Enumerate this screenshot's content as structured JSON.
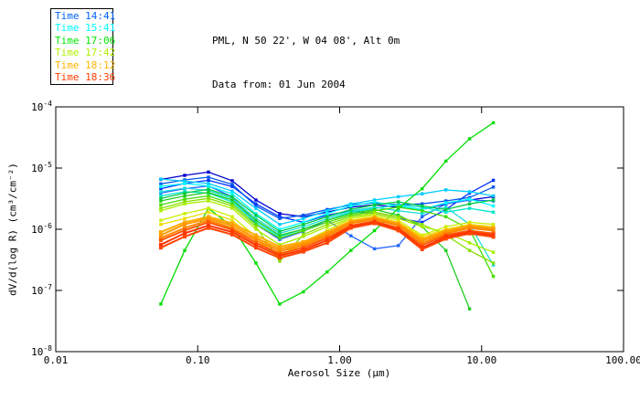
{
  "page": {
    "background": "#ffffff"
  },
  "header": {
    "line1": "PML, N 50 22', W 04 08', Alt 0m",
    "line2": "Data from: 01 Jun 2004"
  },
  "legend": {
    "items": [
      {
        "label": "Time 14:41",
        "color": "#0062ff"
      },
      {
        "label": "Time 15:41",
        "color": "#00ffff"
      },
      {
        "label": "Time 17:06",
        "color": "#00e800"
      },
      {
        "label": "Time 17:42",
        "color": "#b0f000"
      },
      {
        "label": "Time 18:12",
        "color": "#ffb400"
      },
      {
        "label": "Time 18:36",
        "color": "#ff3c00"
      }
    ]
  },
  "axes": {
    "x": {
      "label": "Aerosol Size (μm)",
      "scale": "log",
      "range": [
        0.01,
        100
      ],
      "ticks": [
        {
          "value": 0.01,
          "label": "0.01"
        },
        {
          "value": 0.1,
          "label": "0.10"
        },
        {
          "value": 1,
          "label": "1.00"
        },
        {
          "value": 10,
          "label": "10.00"
        },
        {
          "value": 100,
          "label": "100.00"
        }
      ]
    },
    "y": {
      "label": "dV/d(log R) (cm³/cm⁻²)",
      "scale": "log",
      "range": [
        1e-08,
        0.0001
      ],
      "ticks": [
        {
          "value": 0.0001,
          "mantissa": "10",
          "exponent": "-4"
        },
        {
          "value": 1e-05,
          "mantissa": "10",
          "exponent": "-5"
        },
        {
          "value": 1e-06,
          "mantissa": "10",
          "exponent": "-6"
        },
        {
          "value": 1e-07,
          "mantissa": "10",
          "exponent": "-7"
        },
        {
          "value": 1e-08,
          "mantissa": "10",
          "exponent": "-8"
        }
      ]
    }
  },
  "chart_data": {
    "type": "line",
    "title": "PML, N 50 22', W 04 08', Alt 0m — Data from: 01 Jun 2004",
    "xlabel": "Aerosol Size (μm)",
    "ylabel": "dV/d(log R) (cm³/cm⁻²)",
    "x_scale": "log",
    "y_scale": "log",
    "xlim": [
      0.01,
      100
    ],
    "ylim": [
      1e-08,
      0.0001
    ],
    "grid": false,
    "legend_position": "top-left",
    "marker": "square",
    "x_values": [
      0.055,
      0.081,
      0.119,
      0.175,
      0.257,
      0.378,
      0.555,
      0.816,
      1.2,
      1.76,
      2.59,
      3.81,
      5.6,
      8.23,
      12.1
    ],
    "series": [
      {
        "name": "Time 14:41 run a",
        "time": "14:41",
        "color": "#0000cc",
        "width": 1.3,
        "values": [
          6.5e-06,
          7.6e-06,
          8.6e-06,
          6.2e-06,
          3e-06,
          1.8e-06,
          1.6e-06,
          1.9e-06,
          2.3e-06,
          2.5e-06,
          2.3e-06,
          2.1e-06,
          2.6e-06,
          3e-06,
          3.4e-06
        ]
      },
      {
        "name": "Time 14:41 run b",
        "time": "14:41",
        "color": "#0033ff",
        "width": 1.3,
        "values": [
          4.6e-06,
          5.6e-06,
          6.3e-06,
          5e-06,
          2.6e-06,
          1.6e-06,
          1.3e-06,
          1.7e-06,
          2e-06,
          1.8e-06,
          1.5e-06,
          1.3e-06,
          2.1e-06,
          3.9e-06,
          6.3e-06
        ]
      },
      {
        "name": "Time 14:41 run c",
        "time": "14:41",
        "color": "#0055ee",
        "width": 1.3,
        "values": [
          5.5e-06,
          6.4e-06,
          7.1e-06,
          5.4e-06,
          2.4e-06,
          1.5e-06,
          1.7e-06,
          2.1e-06,
          2.5e-06,
          2.7e-06,
          2.5e-06,
          2.6e-06,
          2.9e-06,
          3.3e-06,
          4.9e-06
        ]
      },
      {
        "name": "Time 14:41 run d",
        "time": "14:41",
        "color": "#2266ff",
        "width": 1.3,
        "values": [
          3.9e-06,
          4.6e-06,
          5.1e-06,
          3.4e-06,
          1.2e-06,
          6.8e-07,
          9.2e-07,
          1.4e-06,
          7.8e-07,
          4.8e-07,
          5.4e-07,
          1.6e-06,
          2.6e-06,
          3e-06,
          2.9e-06
        ]
      },
      {
        "name": "Time 15:41 run a",
        "time": "15:41",
        "color": "#00ccff",
        "width": 1.3,
        "values": [
          6.6e-06,
          6.1e-06,
          5.6e-06,
          4.2e-06,
          2.2e-06,
          1.2e-06,
          1.5e-06,
          2e-06,
          2.6e-06,
          3e-06,
          3.4e-06,
          3.8e-06,
          4.4e-06,
          4.1e-06,
          3.5e-06
        ]
      },
      {
        "name": "Time 15:41 run b",
        "time": "15:41",
        "color": "#00ffff",
        "width": 1.3,
        "values": [
          5e-06,
          5.6e-06,
          5.1e-06,
          3.8e-06,
          1.8e-06,
          1e-06,
          1.3e-06,
          1.8e-06,
          2.4e-06,
          2.8e-06,
          2.4e-06,
          2.1e-06,
          2.7e-06,
          3.1e-06,
          2.4e-06
        ]
      },
      {
        "name": "Time 15:41 run c",
        "time": "15:41",
        "color": "#22dddd",
        "width": 1.3,
        "values": [
          4.1e-06,
          4.7e-06,
          4.3e-06,
          3.2e-06,
          1.5e-06,
          8.6e-07,
          1.1e-06,
          1.5e-06,
          2e-06,
          2.3e-06,
          2e-06,
          1.8e-06,
          2.3e-06,
          1.2e-06,
          2.6e-07
        ]
      },
      {
        "name": "Time 15:41 run d",
        "time": "15:41",
        "color": "#00e6cc",
        "width": 1.3,
        "values": [
          3.5e-06,
          4.1e-06,
          3.9e-06,
          2.8e-06,
          1.3e-06,
          7.6e-07,
          1e-06,
          1.4e-06,
          1.9e-06,
          2.2e-06,
          2.5e-06,
          2.3e-06,
          1.9e-06,
          2.2e-06,
          1.9e-06
        ]
      },
      {
        "name": "Time 17:06 run a",
        "time": "17:06",
        "color": "#00dd00",
        "width": 1.3,
        "values": [
          6e-08,
          4.5e-07,
          2.2e-06,
          1.1e-06,
          2.8e-07,
          6e-08,
          9.5e-08,
          2e-07,
          4.5e-07,
          9.5e-07,
          2.2e-06,
          4.6e-06,
          1.3e-05,
          3e-05,
          5.5e-05
        ]
      },
      {
        "name": "Time 17:06 run b",
        "time": "17:06",
        "color": "#00cc44",
        "width": 1.3,
        "values": [
          3.2e-06,
          3.9e-06,
          4.5e-06,
          3.4e-06,
          1.7e-06,
          9.2e-07,
          1.2e-06,
          1.6e-06,
          2.1e-06,
          2.5e-06,
          2.8e-06,
          2.4e-06,
          2.1e-06,
          2.6e-06,
          3e-06
        ]
      },
      {
        "name": "Time 17:06 run c",
        "time": "17:06",
        "color": "#22cc22",
        "width": 1.3,
        "values": [
          2.9e-06,
          3.5e-06,
          4e-06,
          3e-06,
          1.4e-06,
          8e-07,
          1e-06,
          1.4e-06,
          1.8e-06,
          2.1e-06,
          1.7e-06,
          1.1e-06,
          4.5e-07,
          5e-08,
          null
        ]
      },
      {
        "name": "Time 17:06 run d",
        "time": "17:06",
        "color": "#44dd00",
        "width": 1.3,
        "values": [
          2.5e-06,
          3.1e-06,
          3.5e-06,
          2.6e-06,
          1.2e-06,
          7.2e-07,
          9.4e-07,
          1.3e-06,
          1.7e-06,
          2e-06,
          2.3e-06,
          2e-06,
          1.6e-06,
          1e-06,
          1.7e-07
        ]
      },
      {
        "name": "Time 17:42 run a",
        "time": "17:42",
        "color": "#88dd00",
        "width": 1.3,
        "values": [
          2.2e-06,
          2.8e-06,
          3.2e-06,
          2.4e-06,
          1.1e-06,
          3e-07,
          8.2e-07,
          1.2e-06,
          1.6e-06,
          1.9e-06,
          1.6e-06,
          1.2e-06,
          8e-07,
          4.5e-07,
          2.8e-07
        ]
      },
      {
        "name": "Time 17:42 run b",
        "time": "17:42",
        "color": "#aaee00",
        "width": 1.3,
        "values": [
          2e-06,
          2.6e-06,
          2.9e-06,
          2.2e-06,
          1e-06,
          5.6e-07,
          7.6e-07,
          1.1e-06,
          1.5e-06,
          1.8e-06,
          1.5e-06,
          1.1e-06,
          9e-07,
          6e-07,
          4.2e-07
        ]
      },
      {
        "name": "Time 17:42 run c",
        "time": "17:42",
        "color": "#ccee00",
        "width": 1.3,
        "values": [
          1.4e-06,
          1.8e-06,
          2.2e-06,
          1.6e-06,
          7.6e-07,
          4.2e-07,
          6.2e-07,
          9.6e-07,
          1.5e-06,
          1.7e-06,
          1.4e-06,
          8e-07,
          1.1e-06,
          1.3e-06,
          1.2e-06
        ]
      },
      {
        "name": "Time 17:42 run d",
        "time": "17:42",
        "color": "#eedd00",
        "width": 1.3,
        "values": [
          1.2e-06,
          1.5e-06,
          1.9e-06,
          1.4e-06,
          6.6e-07,
          3.8e-07,
          5.6e-07,
          9e-07,
          1.4e-06,
          1.6e-06,
          1.3e-06,
          7.6e-07,
          1e-06,
          1.2e-06,
          1.1e-06
        ]
      },
      {
        "name": "Time 18:12 run a",
        "time": "18:12",
        "color": "#ffaa00",
        "width": 2,
        "values": [
          9e-07,
          1.3e-06,
          1.6e-06,
          1.25e-06,
          8e-07,
          5.2e-07,
          6.2e-07,
          9e-07,
          1.35e-06,
          1.55e-06,
          1.25e-06,
          7e-07,
          9.5e-07,
          1.15e-06,
          1.05e-06
        ]
      },
      {
        "name": "Time 18:12 run b",
        "time": "18:12",
        "color": "#ff9900",
        "width": 2,
        "values": [
          8e-07,
          1.2e-06,
          1.5e-06,
          1.15e-06,
          7.2e-07,
          4.8e-07,
          5.8e-07,
          8.4e-07,
          1.3e-06,
          1.5e-06,
          1.2e-06,
          6.5e-07,
          9e-07,
          1.1e-06,
          1e-06
        ]
      },
      {
        "name": "Time 18:12 run c",
        "time": "18:12",
        "color": "#ff8800",
        "width": 2,
        "values": [
          7.2e-07,
          1.05e-06,
          1.4e-06,
          1.05e-06,
          6.6e-07,
          4.4e-07,
          5.4e-07,
          7.8e-07,
          1.25e-06,
          1.45e-06,
          1.15e-06,
          6e-07,
          8.5e-07,
          1.05e-06,
          9.5e-07
        ]
      },
      {
        "name": "Time 18:36 run a",
        "time": "18:36",
        "color": "#ff5500",
        "width": 2,
        "values": [
          6.6e-07,
          9.6e-07,
          1.3e-06,
          9.8e-07,
          6e-07,
          4e-07,
          5e-07,
          7.2e-07,
          1.15e-06,
          1.35e-06,
          1.05e-06,
          5.5e-07,
          8e-07,
          9.5e-07,
          8.5e-07
        ]
      },
      {
        "name": "Time 18:36 run b",
        "time": "18:36",
        "color": "#ff3300",
        "width": 2,
        "values": [
          5.6e-07,
          8.6e-07,
          1.15e-06,
          9e-07,
          5.5e-07,
          3.7e-07,
          4.6e-07,
          6.6e-07,
          1.1e-06,
          1.3e-06,
          1e-06,
          5e-07,
          7.5e-07,
          9e-07,
          8e-07
        ]
      },
      {
        "name": "Time 18:36 run c",
        "time": "18:36",
        "color": "#ff4400",
        "width": 2,
        "values": [
          5e-07,
          7.6e-07,
          1.05e-06,
          8.2e-07,
          5e-07,
          3.4e-07,
          4.3e-07,
          6e-07,
          1.05e-06,
          1.25e-06,
          9.5e-07,
          4.7e-07,
          7e-07,
          8.5e-07,
          7.5e-07
        ]
      }
    ]
  }
}
